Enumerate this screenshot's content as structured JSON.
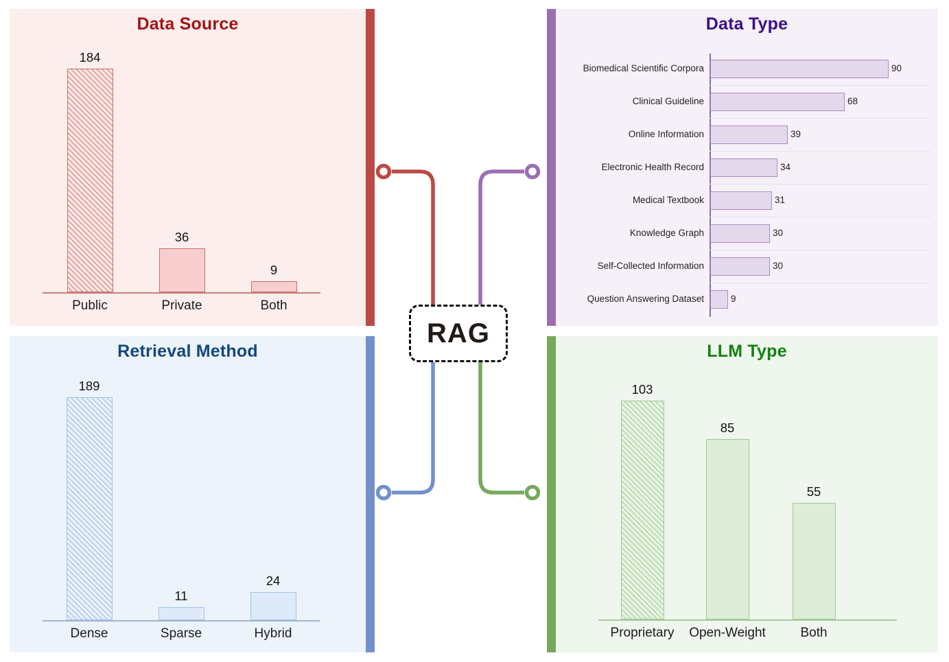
{
  "center": {
    "label": "RAG"
  },
  "chart_data": [
    {
      "id": "data_source",
      "type": "bar",
      "position": "top-left",
      "title": "Data Source",
      "categories": [
        "Public",
        "Private",
        "Both"
      ],
      "values": [
        184,
        36,
        9
      ],
      "value_labels": [
        "184",
        "36",
        "9"
      ],
      "hatched_bars": [
        0
      ],
      "ylim": [
        0,
        200
      ],
      "grid": false,
      "theme": {
        "accent": "#bb4a45",
        "title_color": "#a31313",
        "panel_bg": "#fdeeee",
        "bar_fill": "#f7cecd",
        "bar_border": "#c86f69",
        "hatch_bg": "#fbe7e5",
        "hatch_line": "#dd918a",
        "axis_line": "#c97d77"
      }
    },
    {
      "id": "data_type",
      "type": "bar",
      "orientation": "horizontal",
      "position": "top-right",
      "title": "Data Type",
      "categories": [
        "Biomedical Scientific Corpora",
        "Clinical Guideline",
        "Online Information",
        "Electronic Health Record",
        "Medical Textbook",
        "Knowledge Graph",
        "Self-Collected Information",
        "Question Answering Dataset"
      ],
      "values": [
        90,
        68,
        39,
        34,
        31,
        30,
        30,
        9
      ],
      "value_labels": [
        "90",
        "68",
        "39",
        "34",
        "31",
        "30",
        "30",
        "9"
      ],
      "hatched_bars": [],
      "xlim": [
        0,
        100
      ],
      "grid": true,
      "theme": {
        "accent": "#9a6fb0",
        "title_color": "#3a1086",
        "panel_bg": "#f6f0f8",
        "bar_fill": "#e4d9ec",
        "bar_border": "#a98bbd",
        "axis_line": "#8a6ba3",
        "grid_line": "#e7dff0"
      }
    },
    {
      "id": "retrieval_method",
      "type": "bar",
      "position": "bottom-left",
      "title": "Retrieval Method",
      "categories": [
        "Dense",
        "Sparse",
        "Hybrid"
      ],
      "values": [
        189,
        11,
        24
      ],
      "value_labels": [
        "189",
        "11",
        "24"
      ],
      "hatched_bars": [
        0
      ],
      "ylim": [
        0,
        200
      ],
      "grid": false,
      "theme": {
        "accent": "#7191c8",
        "title_color": "#12477e",
        "panel_bg": "#edf3fb",
        "bar_fill": "#deeafa",
        "bar_border": "#a5c2e4",
        "hatch_bg": "#e9f1fb",
        "hatch_line": "#aac7e9",
        "axis_line": "#9db7d6"
      }
    },
    {
      "id": "llm_type",
      "type": "bar",
      "position": "bottom-right",
      "title": "LLM Type",
      "categories": [
        "Proprietary",
        "Open-Weight",
        "Both"
      ],
      "values": [
        103,
        85,
        55
      ],
      "value_labels": [
        "103",
        "85",
        "55"
      ],
      "hatched_bars": [
        0
      ],
      "ylim": [
        0,
        110
      ],
      "grid": false,
      "theme": {
        "accent": "#77a95d",
        "title_color": "#128212",
        "panel_bg": "#eef6ed",
        "bar_fill": "#ddedd8",
        "bar_border": "#a2c797",
        "hatch_bg": "#e7f2e2",
        "hatch_line": "#b2d3a6",
        "axis_line": "#a9cc9e"
      }
    }
  ]
}
